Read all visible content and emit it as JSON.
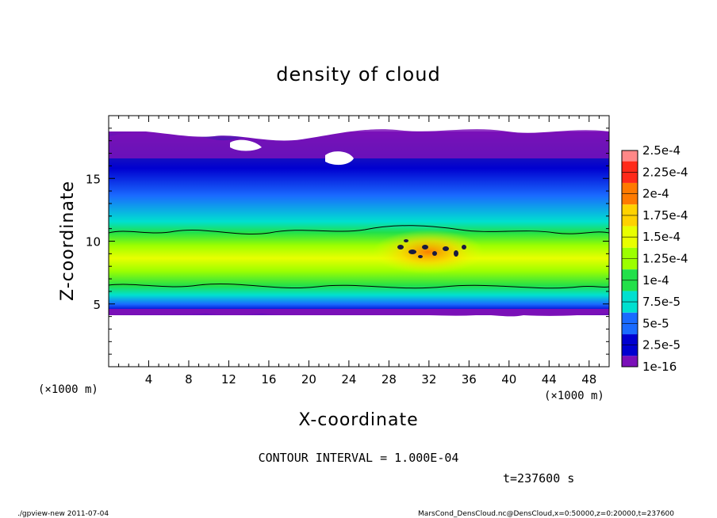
{
  "chart_data": {
    "type": "heatmap",
    "title": "density of cloud",
    "xlabel": "X-coordinate",
    "ylabel": "Z-coordinate",
    "x_unit": "(×1000 m)",
    "z_unit": "(×1000 m)",
    "xlim": [
      0,
      50
    ],
    "ylim": [
      0,
      20
    ],
    "x_ticks": [
      4,
      8,
      12,
      16,
      20,
      24,
      28,
      32,
      36,
      40,
      44,
      48
    ],
    "y_ticks": [
      5,
      10,
      15
    ],
    "colorbar": {
      "labels": [
        "2.5e-4",
        "2.25e-4",
        "2e-4",
        "1.75e-4",
        "1.5e-4",
        "1.25e-4",
        "1e-4",
        "7.5e-5",
        "5e-5",
        "2.5e-5",
        "1e-16"
      ],
      "colors": [
        "#ff8888",
        "#ff2a1a",
        "#ff7a00",
        "#ffd200",
        "#e8ff00",
        "#9cff00",
        "#22e04a",
        "#00e0d0",
        "#1a6bff",
        "#0000d0",
        "#7a10b8"
      ]
    },
    "cloud_layer": {
      "z_bottom_km": 4.3,
      "z_top_km": 18.5,
      "core_z_km": [
        6.5,
        10.8
      ],
      "max_region_x_km": [
        28,
        36
      ],
      "max_region_z_km": [
        8.5,
        10.0
      ]
    },
    "contour_interval": "CONTOUR INTERVAL = 1.000E-04",
    "time_label": "t=237600 s"
  },
  "footer": {
    "left": "./gpview-new   2011-07-04",
    "right": "MarsCond_DensCloud.nc@DensCloud,x=0:50000,z=0:20000,t=237600"
  }
}
